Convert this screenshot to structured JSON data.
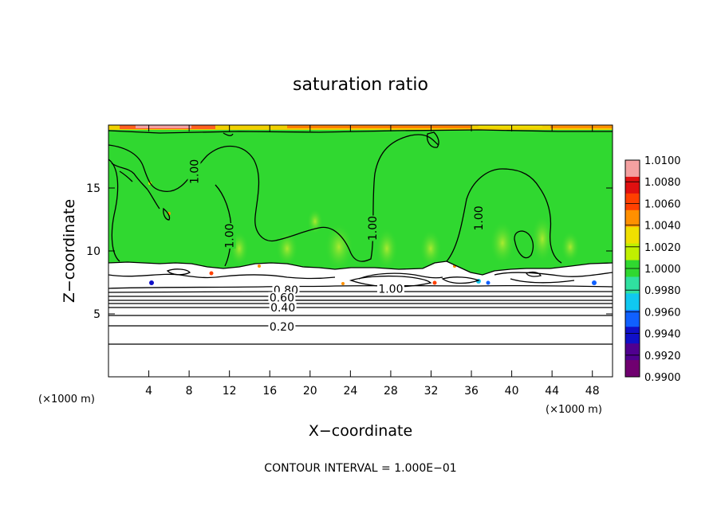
{
  "chart_data": {
    "type": "heatmap",
    "title": "saturation ratio",
    "xlabel": "X−coordinate",
    "ylabel": "Z−coordinate",
    "x_unit_left": "(×1000 m)",
    "x_unit_right": "(×1000 m)",
    "xlim": [
      0,
      50
    ],
    "ylim": [
      0,
      20
    ],
    "x_ticks": [
      "4",
      "8",
      "12",
      "16",
      "20",
      "24",
      "28",
      "32",
      "36",
      "40",
      "44",
      "48"
    ],
    "y_ticks": [
      "5",
      "10",
      "15"
    ],
    "x_tick_values": [
      4,
      8,
      12,
      16,
      20,
      24,
      28,
      32,
      36,
      40,
      44,
      48
    ],
    "y_tick_values": [
      5,
      10,
      15
    ],
    "footer": "CONTOUR INTERVAL =  1.000E−01",
    "colorbar": {
      "labels": [
        "1.0100",
        "1.0080",
        "1.0060",
        "1.0040",
        "1.0020",
        "1.0000",
        "0.9980",
        "0.9960",
        "0.9940",
        "0.9920",
        "0.9900"
      ],
      "colors": [
        "#f4a0a0",
        "#e01010",
        "#ff4000",
        "#ff9000",
        "#f0e000",
        "#c0f000",
        "#30d830",
        "#30e0a0",
        "#10c8f0",
        "#1060ff",
        "#1010c8",
        "#500090",
        "#700070"
      ]
    },
    "contour_labels": [
      {
        "text": "1.00",
        "x": 8.5,
        "z": 16.3
      },
      {
        "text": "1.00",
        "x": 12.0,
        "z": 11.2
      },
      {
        "text": "1.00",
        "x": 26.2,
        "z": 11.8
      },
      {
        "text": "1.00",
        "x": 36.7,
        "z": 12.6
      },
      {
        "text": "1.00",
        "x": 28.0,
        "z": 7.0
      },
      {
        "text": "0.80",
        "x": 17.6,
        "z": 6.9
      },
      {
        "text": "0.60",
        "x": 17.2,
        "z": 6.3
      },
      {
        "text": "0.40",
        "x": 17.3,
        "z": 5.5
      },
      {
        "text": "0.20",
        "x": 17.2,
        "z": 4.0
      }
    ]
  }
}
